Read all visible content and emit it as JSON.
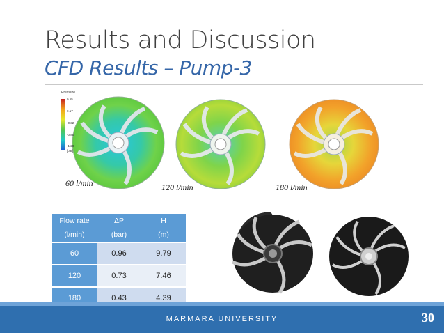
{
  "slide": {
    "title": "Results and Discussion",
    "subtitle": "CFD Results – Pump-3",
    "page_number": "30",
    "footer": "MARMARA UNIVERSITY"
  },
  "legend": {
    "title": "Pressure",
    "ticks": [
      "0.65",
      "0.17",
      "-0.32",
      "-0.80",
      "-1.28"
    ],
    "unit": "[bar]"
  },
  "cfd_images": [
    {
      "label": "60 l/min"
    },
    {
      "label": "120 l/min"
    },
    {
      "label": "180 l/min"
    }
  ],
  "table": {
    "headers": [
      [
        "Flow rate",
        "(l/min)"
      ],
      [
        "ΔP",
        "(bar)"
      ],
      [
        "H",
        "(m)"
      ]
    ],
    "rows": [
      [
        "60",
        "0.96",
        "9.79"
      ],
      [
        "120",
        "0.73",
        "7.46"
      ],
      [
        "180",
        "0.43",
        "4.39"
      ]
    ]
  },
  "colors": {
    "title": "#404040",
    "subtitle": "#3566a8",
    "footer": "#2f6faf",
    "table_header": "#5b9bd5"
  }
}
